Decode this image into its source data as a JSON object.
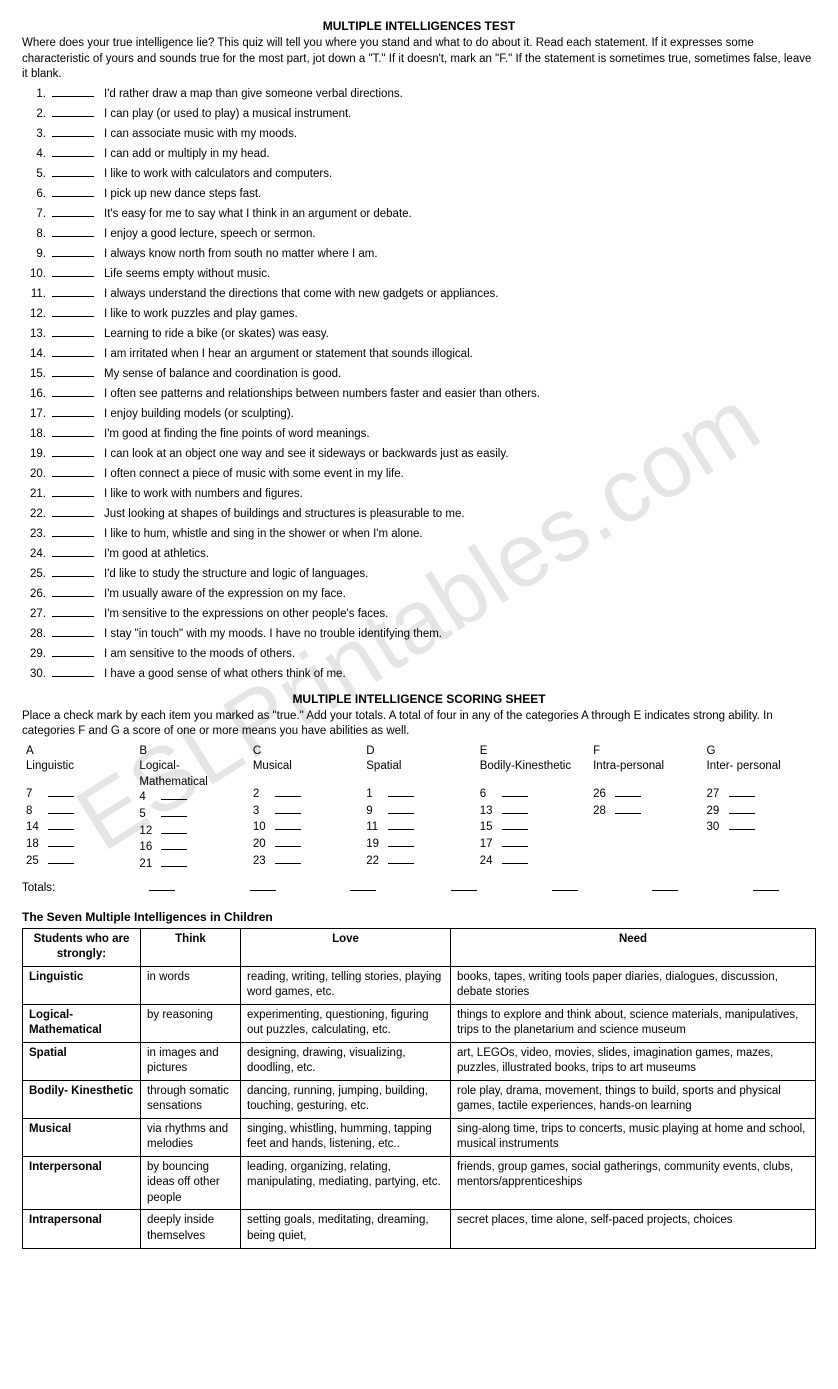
{
  "watermark": "ESLPrintables.com",
  "title1": "MULTIPLE INTELLIGENCES TEST",
  "intro1": "Where does your true intelligence lie?  This quiz will tell you where you stand and what to do about it.  Read each statement.  If it expresses some characteristic of yours and sounds true for the most part, jot down a \"T.\" If it doesn't, mark an \"F.\" If the statement is sometimes true, sometimes false, leave it blank.",
  "questions": [
    "I'd rather draw a map than give someone verbal directions.",
    "I can play (or used to play) a musical instrument.",
    "I can associate music with my moods.",
    "I can add or multiply in my head.",
    "I like to work with calculators and computers.",
    "I pick up new dance steps fast.",
    "It's easy for me to say what I think in an argument or debate.",
    "I enjoy a good lecture, speech or sermon.",
    "I always know north from south no matter where I am.",
    "Life seems empty without music.",
    "I always understand the directions that come with new gadgets or appliances.",
    "I like to work puzzles and play games.",
    "Learning to ride a bike (or skates) was easy.",
    "I am irritated when I hear an argument or statement that sounds illogical.",
    "My sense of balance and coordination is good.",
    "I often see patterns and relationships between numbers faster and easier than others.",
    "I enjoy building models (or sculpting).",
    "I'm good at finding the fine points of word meanings.",
    "I can look at an object one way and see it sideways or backwards just as easily.",
    "I often connect a piece of music with some event in my life.",
    "I like to work with numbers and figures.",
    "Just looking at shapes of buildings and structures is pleasurable to me.",
    "I like to hum, whistle and sing in the shower or when I'm alone.",
    "I'm good at athletics.",
    "I'd like to study the structure and logic of languages.",
    "I'm usually aware of the expression on my face.",
    "I'm sensitive to the expressions on other people's faces.",
    "I stay \"in touch\" with my moods.  I have no trouble identifying them.",
    "I am sensitive to the moods of others.",
    "I have a good sense of what others think of me."
  ],
  "title2": "MULTIPLE INTELLIGENCE SCORING SHEET",
  "intro2": "Place a check mark by each item you marked as \"true.\"  Add your totals.   A total of four in any of the categories A through E indicates strong ability.   In categories F and G a score of one or more means you have abilities as well.",
  "scoring_cols": [
    {
      "letter": "A",
      "name": "Linguistic",
      "items": [
        "7",
        "8",
        "14",
        "18",
        "25"
      ]
    },
    {
      "letter": "B",
      "name": "Logical-Mathematical",
      "items": [
        "4",
        "5",
        "12",
        "16",
        "21"
      ]
    },
    {
      "letter": "C",
      "name": "Musical",
      "items": [
        "2",
        "3",
        "10",
        "20",
        "23"
      ]
    },
    {
      "letter": "D",
      "name": "Spatial",
      "items": [
        "1",
        "9",
        "11",
        "19",
        "22"
      ]
    },
    {
      "letter": "E",
      "name": "Bodily-Kinesthetic",
      "items": [
        "6",
        "13",
        "15",
        "17",
        "24"
      ]
    },
    {
      "letter": "F",
      "name": "Intra-personal",
      "items": [
        "26",
        "28"
      ]
    },
    {
      "letter": "G",
      "name": "Inter- personal",
      "items": [
        "27",
        "29",
        "30"
      ]
    }
  ],
  "totals_label": "Totals:",
  "table_title": "The Seven Multiple Intelligences in Children",
  "table_headers": [
    "Students who are strongly:",
    "Think",
    "Love",
    "Need"
  ],
  "table_rows": [
    {
      "h": "Linguistic",
      "think": "in words",
      "love": "reading, writing, telling stories, playing word games, etc.",
      "need": "books, tapes, writing tools paper diaries, dialogues, discussion, debate stories"
    },
    {
      "h": "Logical-Mathematical",
      "think": "by reasoning",
      "love": "experimenting, questioning, figuring out puzzles, calculating, etc.",
      "need": "things to explore and think about, science materials, manipulatives, trips to the planetarium and science museum"
    },
    {
      "h": "Spatial",
      "think": "in images and pictures",
      "love": "designing, drawing, visualizing, doodling, etc.",
      "need": "art, LEGOs, video, movies, slides, imagination games, mazes, puzzles, illustrated books, trips to art museums"
    },
    {
      "h": "Bodily- Kinesthetic",
      "think": "through somatic sensations",
      "love": "dancing, running, jumping, building, touching, gesturing, etc.",
      "need": "role play, drama, movement, things to build, sports and physical games, tactile experiences, hands-on learning"
    },
    {
      "h": "Musical",
      "think": "via rhythms and melodies",
      "love": "singing, whistling, humming, tapping feet and hands, listening, etc..",
      "need": "sing-along time, trips to concerts, music playing at home and school, musical instruments"
    },
    {
      "h": "Interpersonal",
      "think": "by bouncing ideas off other people",
      "love": "leading, organizing, relating, manipulating, mediating, partying, etc.",
      "need": "friends, group games, social gatherings, community events, clubs, mentors/apprenticeships"
    },
    {
      "h": "Intrapersonal",
      "think": "deeply inside themselves",
      "love": "setting goals, meditating, dreaming, being quiet,",
      "need": "secret places, time alone, self-paced projects, choices"
    }
  ]
}
